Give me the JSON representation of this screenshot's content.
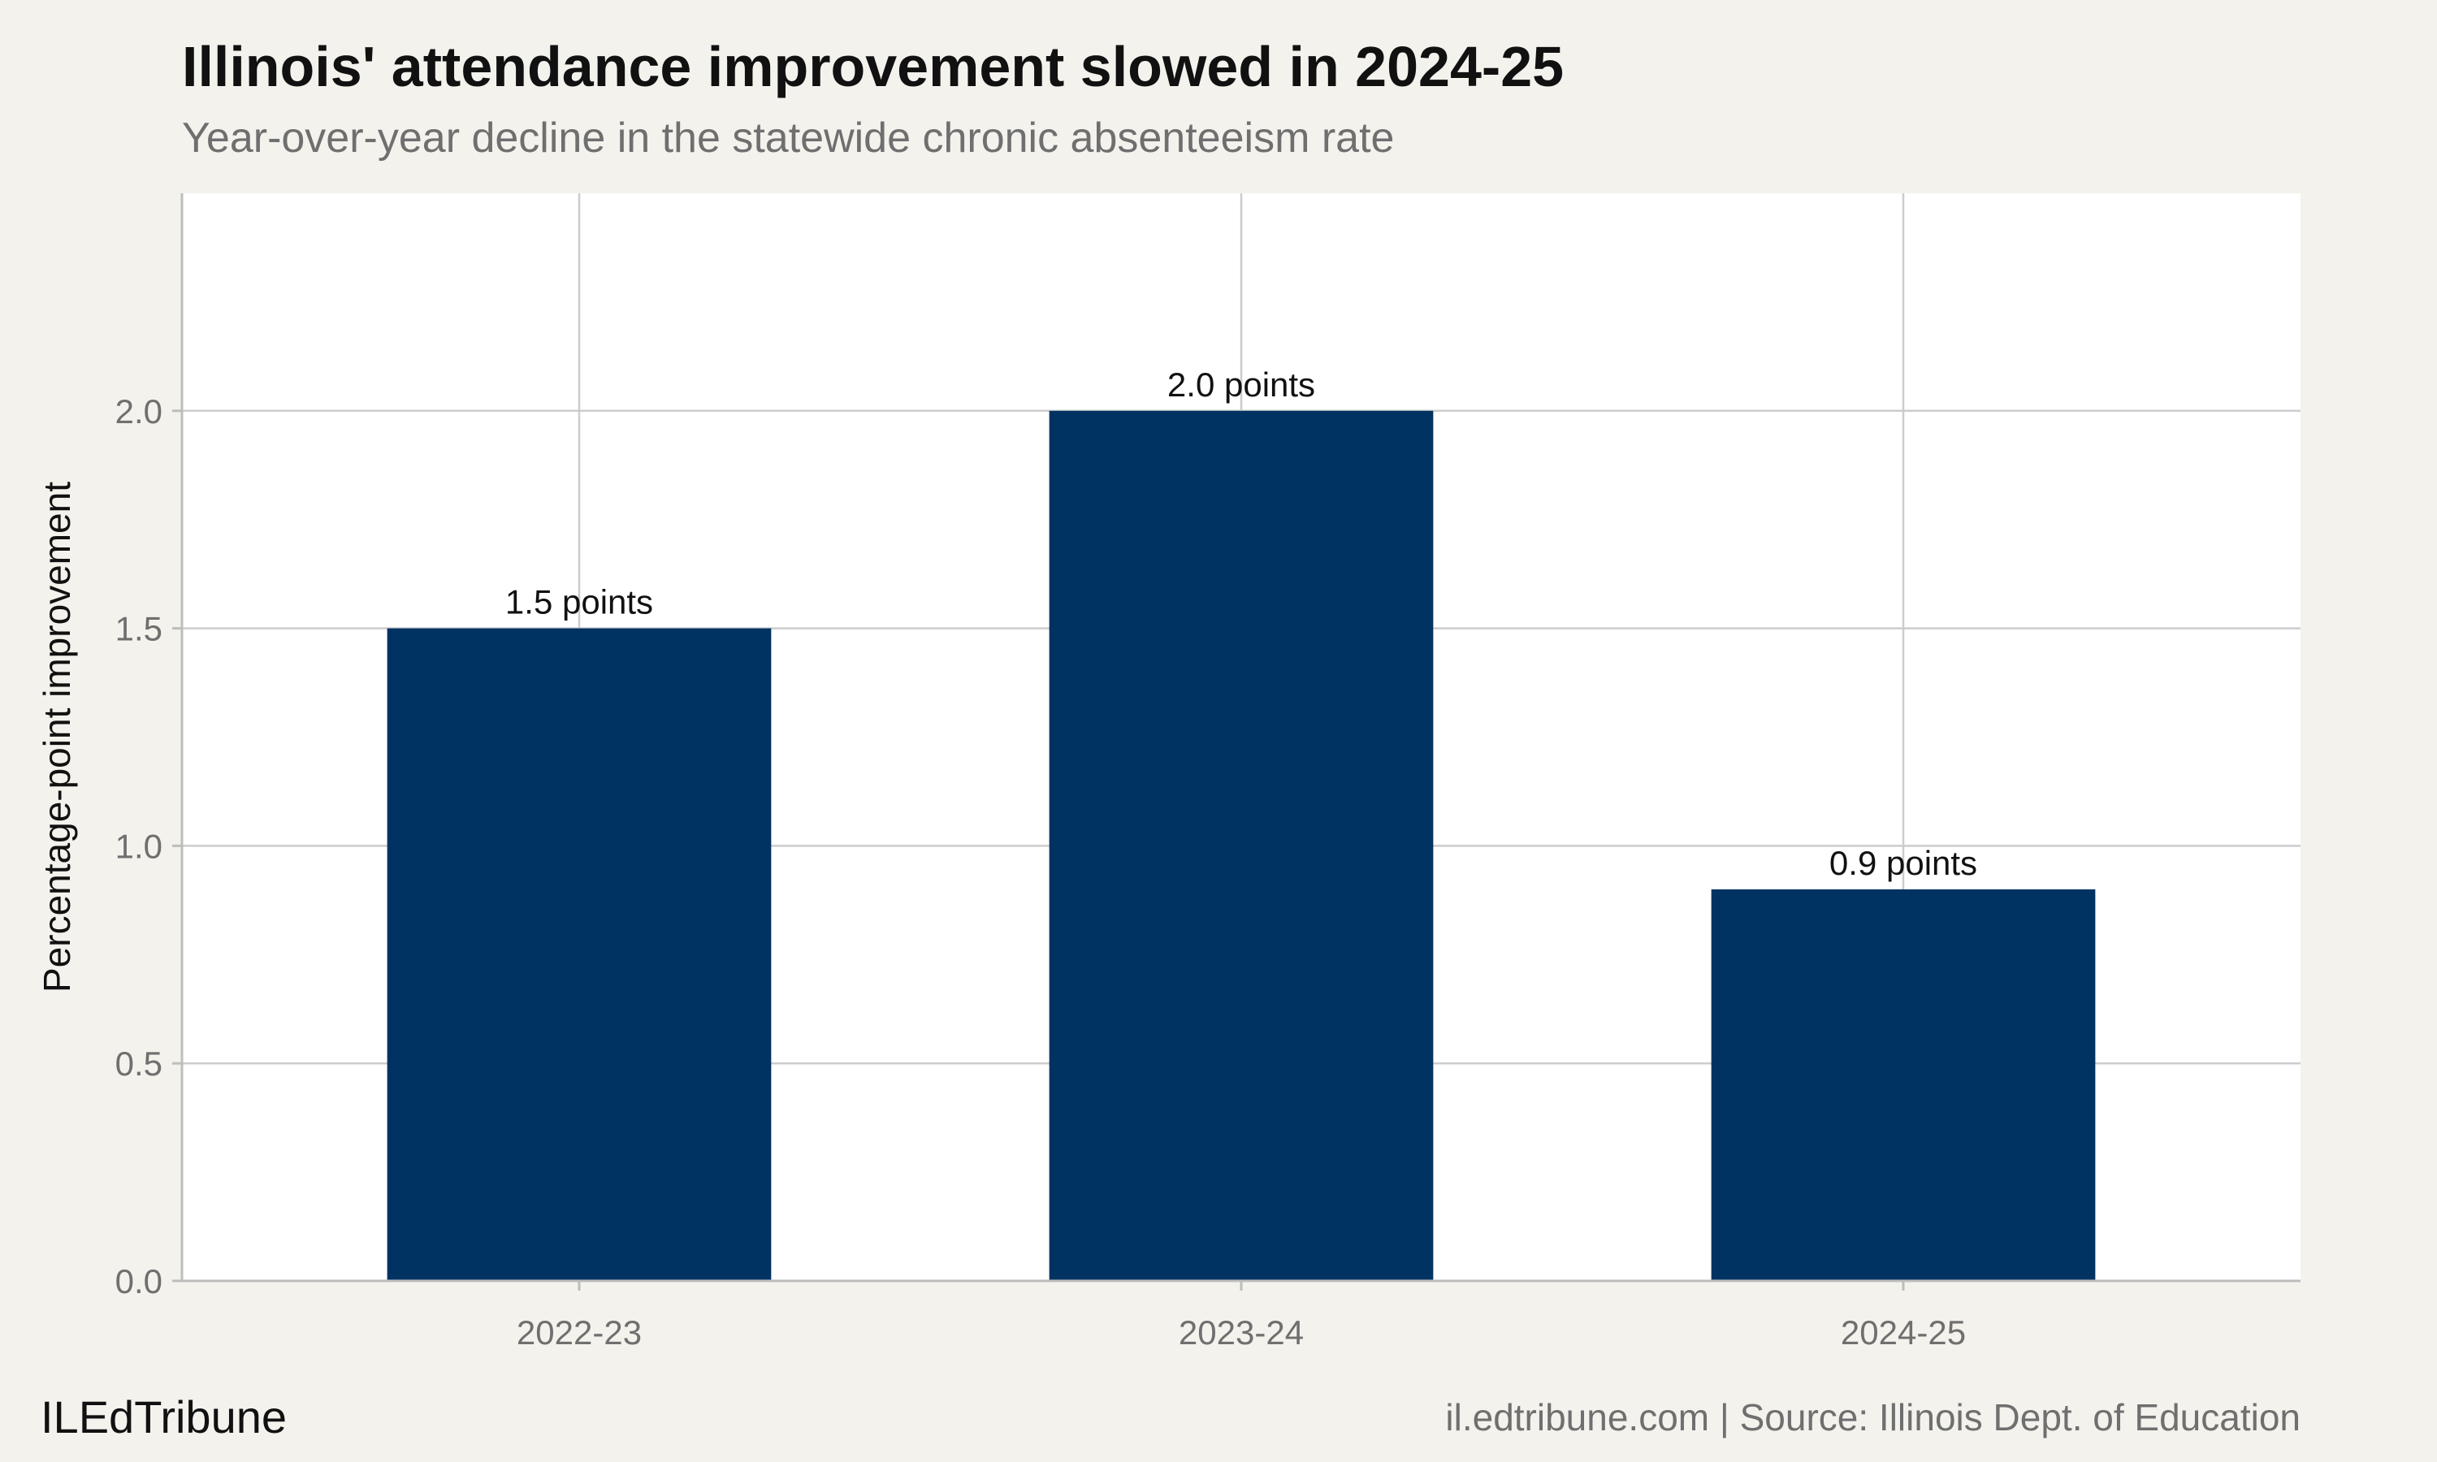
{
  "title": "Illinois' attendance improvement slowed in 2024-25",
  "subtitle": "Year-over-year decline in the statewide chronic absenteeism rate",
  "footer": {
    "brand": "ILEdTribune",
    "source": "il.edtribune.com | Source: Illinois Dept. of Education"
  },
  "colors": {
    "background": "#f4f2ed",
    "panel": "#ffffff",
    "bar": "#003262",
    "grid": "#cccccc",
    "axis_text": "#6f6f6f"
  },
  "chart_data": {
    "type": "bar",
    "categories": [
      "2022-23",
      "2023-24",
      "2024-25"
    ],
    "values": [
      1.5,
      2.0,
      0.9
    ],
    "data_labels": [
      "1.5 points",
      "2.0 points",
      "0.9 points"
    ],
    "xlabel": "",
    "ylabel": "Percentage-point improvement",
    "ylim": [
      0,
      2.5
    ],
    "yticks": [
      0.0,
      0.5,
      1.0,
      1.5,
      2.0
    ],
    "ytick_labels": [
      "0.0",
      "0.5",
      "1.0",
      "1.5",
      "2.0"
    ],
    "grid": true,
    "legend": "none"
  }
}
